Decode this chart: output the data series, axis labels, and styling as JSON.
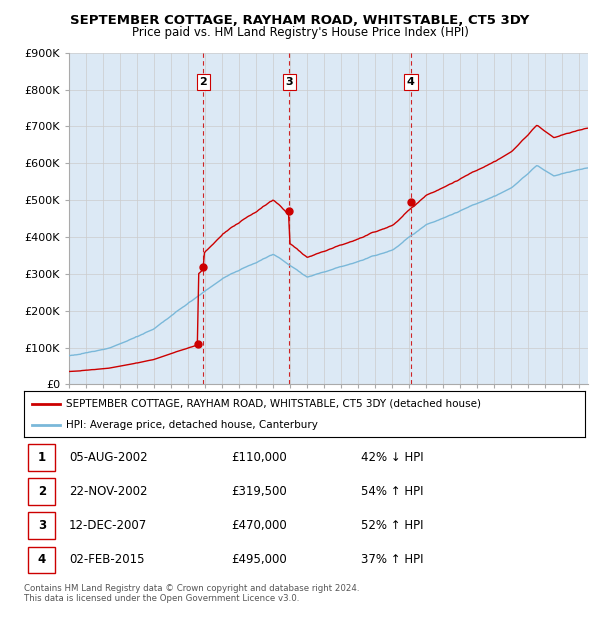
{
  "title": "SEPTEMBER COTTAGE, RAYHAM ROAD, WHITSTABLE, CT5 3DY",
  "subtitle": "Price paid vs. HM Land Registry's House Price Index (HPI)",
  "ylim": [
    0,
    900000
  ],
  "yticks": [
    0,
    100000,
    200000,
    300000,
    400000,
    500000,
    600000,
    700000,
    800000,
    900000
  ],
  "ytick_labels": [
    "£0",
    "£100K",
    "£200K",
    "£300K",
    "£400K",
    "£500K",
    "£600K",
    "£700K",
    "£800K",
    "£900K"
  ],
  "xlim_start": 1995.0,
  "xlim_end": 2025.5,
  "sale_dates": [
    2002.6,
    2002.9,
    2007.95,
    2015.09
  ],
  "sale_prices": [
    110000,
    319500,
    470000,
    495000
  ],
  "sale_labels": [
    "1",
    "2",
    "3",
    "4"
  ],
  "hpi_color": "#7ab8d9",
  "sale_color": "#cc0000",
  "dashed_color": "#cc0000",
  "grid_color": "#cccccc",
  "bg_color": "#dce9f5",
  "legend_label_sale": "SEPTEMBER COTTAGE, RAYHAM ROAD, WHITSTABLE, CT5 3DY (detached house)",
  "legend_label_hpi": "HPI: Average price, detached house, Canterbury",
  "table_rows": [
    [
      "1",
      "05-AUG-2002",
      "£110,000",
      "42% ↓ HPI"
    ],
    [
      "2",
      "22-NOV-2002",
      "£319,500",
      "54% ↑ HPI"
    ],
    [
      "3",
      "12-DEC-2007",
      "£470,000",
      "52% ↑ HPI"
    ],
    [
      "4",
      "02-FEB-2015",
      "£495,000",
      "37% ↑ HPI"
    ]
  ],
  "footnote": "Contains HM Land Registry data © Crown copyright and database right 2024.\nThis data is licensed under the Open Government Licence v3.0."
}
